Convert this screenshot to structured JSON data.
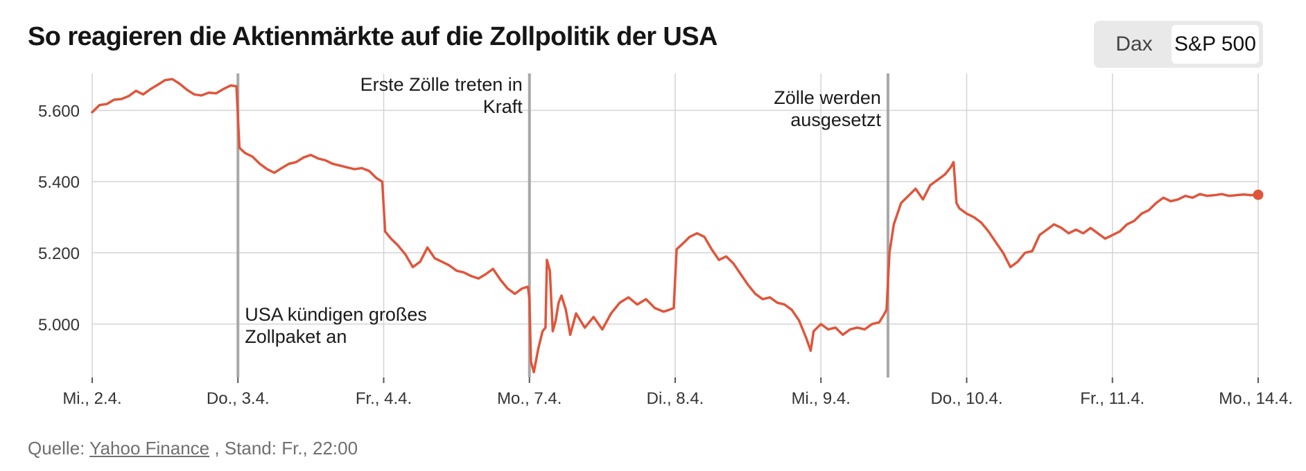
{
  "title": "So reagieren die Aktienmärkte auf die Zollpolitik der USA",
  "toggle": {
    "options": [
      "Dax",
      "S&P 500"
    ],
    "selected": "S&P 500"
  },
  "source": {
    "prefix": "Quelle:",
    "link_text": "Yahoo Finance",
    "suffix": ", Stand: Fr., 22:00"
  },
  "colors": {
    "line": "#e0553a",
    "grid": "#d4d4d4",
    "event_line": "#a8a8a8",
    "text": "#333333"
  },
  "chart_data": {
    "type": "line",
    "title": "So reagieren die Aktienmärkte auf die Zollpolitik der USA",
    "xlabel": "",
    "ylabel": "",
    "x_ticks": [
      "Mi., 2.4.",
      "Do., 3.4.",
      "Fr., 4.4.",
      "Mo., 7.4.",
      "Di., 8.4.",
      "Mi., 9.4.",
      "Do., 10.4.",
      "Fr., 11.4.",
      "Mo., 14.4."
    ],
    "x_range": [
      0,
      8
    ],
    "y_ticks": [
      5000,
      5200,
      5400,
      5600
    ],
    "y_tick_labels": [
      "5.000",
      "5.200",
      "5.400",
      "5.600"
    ],
    "ylim": [
      4850,
      5700
    ],
    "grid": true,
    "series": [
      {
        "name": "S&P 500",
        "points": [
          [
            0.0,
            5595
          ],
          [
            0.05,
            5615
          ],
          [
            0.1,
            5618
          ],
          [
            0.15,
            5630
          ],
          [
            0.2,
            5632
          ],
          [
            0.25,
            5640
          ],
          [
            0.3,
            5655
          ],
          [
            0.35,
            5645
          ],
          [
            0.4,
            5660
          ],
          [
            0.45,
            5672
          ],
          [
            0.5,
            5685
          ],
          [
            0.55,
            5688
          ],
          [
            0.6,
            5675
          ],
          [
            0.65,
            5658
          ],
          [
            0.7,
            5645
          ],
          [
            0.75,
            5642
          ],
          [
            0.8,
            5650
          ],
          [
            0.85,
            5648
          ],
          [
            0.9,
            5660
          ],
          [
            0.95,
            5670
          ],
          [
            0.99,
            5668
          ],
          [
            1.01,
            5495
          ],
          [
            1.05,
            5480
          ],
          [
            1.1,
            5470
          ],
          [
            1.15,
            5450
          ],
          [
            1.2,
            5435
          ],
          [
            1.25,
            5425
          ],
          [
            1.3,
            5438
          ],
          [
            1.35,
            5450
          ],
          [
            1.4,
            5455
          ],
          [
            1.45,
            5468
          ],
          [
            1.5,
            5475
          ],
          [
            1.55,
            5465
          ],
          [
            1.6,
            5460
          ],
          [
            1.65,
            5450
          ],
          [
            1.7,
            5445
          ],
          [
            1.75,
            5440
          ],
          [
            1.8,
            5435
          ],
          [
            1.85,
            5438
          ],
          [
            1.9,
            5430
          ],
          [
            1.95,
            5410
          ],
          [
            1.99,
            5400
          ],
          [
            2.01,
            5260
          ],
          [
            2.05,
            5240
          ],
          [
            2.1,
            5220
          ],
          [
            2.15,
            5195
          ],
          [
            2.2,
            5160
          ],
          [
            2.25,
            5175
          ],
          [
            2.3,
            5215
          ],
          [
            2.35,
            5185
          ],
          [
            2.4,
            5175
          ],
          [
            2.45,
            5165
          ],
          [
            2.5,
            5150
          ],
          [
            2.55,
            5145
          ],
          [
            2.6,
            5135
          ],
          [
            2.65,
            5128
          ],
          [
            2.7,
            5140
          ],
          [
            2.75,
            5155
          ],
          [
            2.8,
            5125
          ],
          [
            2.85,
            5100
          ],
          [
            2.9,
            5085
          ],
          [
            2.95,
            5100
          ],
          [
            2.99,
            5105
          ],
          [
            3.0,
            5070
          ],
          [
            3.01,
            4895
          ],
          [
            3.03,
            4865
          ],
          [
            3.06,
            4930
          ],
          [
            3.09,
            4980
          ],
          [
            3.11,
            4990
          ],
          [
            3.12,
            5180
          ],
          [
            3.14,
            5150
          ],
          [
            3.16,
            4980
          ],
          [
            3.18,
            5010
          ],
          [
            3.2,
            5060
          ],
          [
            3.22,
            5080
          ],
          [
            3.25,
            5040
          ],
          [
            3.28,
            4970
          ],
          [
            3.32,
            5030
          ],
          [
            3.38,
            4990
          ],
          [
            3.44,
            5020
          ],
          [
            3.5,
            4985
          ],
          [
            3.56,
            5030
          ],
          [
            3.62,
            5060
          ],
          [
            3.68,
            5075
          ],
          [
            3.74,
            5055
          ],
          [
            3.8,
            5070
          ],
          [
            3.86,
            5045
          ],
          [
            3.92,
            5035
          ],
          [
            3.96,
            5040
          ],
          [
            3.99,
            5045
          ],
          [
            4.01,
            5210
          ],
          [
            4.05,
            5225
          ],
          [
            4.1,
            5245
          ],
          [
            4.15,
            5255
          ],
          [
            4.2,
            5245
          ],
          [
            4.25,
            5210
          ],
          [
            4.3,
            5180
          ],
          [
            4.35,
            5190
          ],
          [
            4.4,
            5170
          ],
          [
            4.45,
            5140
          ],
          [
            4.5,
            5110
          ],
          [
            4.55,
            5085
          ],
          [
            4.6,
            5070
          ],
          [
            4.65,
            5075
          ],
          [
            4.7,
            5060
          ],
          [
            4.75,
            5055
          ],
          [
            4.8,
            5040
          ],
          [
            4.85,
            5010
          ],
          [
            4.9,
            4960
          ],
          [
            4.93,
            4925
          ],
          [
            4.95,
            4980
          ],
          [
            5.0,
            5000
          ],
          [
            5.05,
            4985
          ],
          [
            5.1,
            4990
          ],
          [
            5.15,
            4970
          ],
          [
            5.2,
            4985
          ],
          [
            5.25,
            4990
          ],
          [
            5.3,
            4985
          ],
          [
            5.35,
            5000
          ],
          [
            5.4,
            5005
          ],
          [
            5.43,
            5025
          ],
          [
            5.45,
            5040
          ],
          [
            5.47,
            5200
          ],
          [
            5.5,
            5280
          ],
          [
            5.55,
            5340
          ],
          [
            5.6,
            5360
          ],
          [
            5.65,
            5380
          ],
          [
            5.7,
            5350
          ],
          [
            5.75,
            5390
          ],
          [
            5.8,
            5405
          ],
          [
            5.85,
            5420
          ],
          [
            5.89,
            5440
          ],
          [
            5.91,
            5455
          ],
          [
            5.93,
            5340
          ],
          [
            5.95,
            5325
          ],
          [
            6.0,
            5310
          ],
          [
            6.05,
            5300
          ],
          [
            6.1,
            5285
          ],
          [
            6.15,
            5260
          ],
          [
            6.2,
            5230
          ],
          [
            6.25,
            5200
          ],
          [
            6.3,
            5160
          ],
          [
            6.35,
            5175
          ],
          [
            6.4,
            5200
          ],
          [
            6.45,
            5205
          ],
          [
            6.5,
            5250
          ],
          [
            6.55,
            5265
          ],
          [
            6.6,
            5280
          ],
          [
            6.65,
            5270
          ],
          [
            6.7,
            5255
          ],
          [
            6.75,
            5265
          ],
          [
            6.8,
            5255
          ],
          [
            6.85,
            5270
          ],
          [
            6.9,
            5255
          ],
          [
            6.95,
            5240
          ],
          [
            7.0,
            5250
          ],
          [
            7.05,
            5260
          ],
          [
            7.1,
            5280
          ],
          [
            7.15,
            5290
          ],
          [
            7.2,
            5310
          ],
          [
            7.25,
            5320
          ],
          [
            7.3,
            5340
          ],
          [
            7.35,
            5355
          ],
          [
            7.4,
            5345
          ],
          [
            7.45,
            5350
          ],
          [
            7.5,
            5360
          ],
          [
            7.55,
            5355
          ],
          [
            7.6,
            5365
          ],
          [
            7.65,
            5360
          ],
          [
            7.7,
            5362
          ],
          [
            7.75,
            5365
          ],
          [
            7.8,
            5360
          ],
          [
            7.85,
            5362
          ],
          [
            7.9,
            5364
          ],
          [
            7.95,
            5362
          ],
          [
            8.0,
            5363
          ]
        ]
      }
    ],
    "annotations": [
      {
        "x": 1.0,
        "label": "USA kündigen großes Zollpaket an",
        "lines": [
          "USA kündigen großes",
          "Zollpaket an"
        ]
      },
      {
        "x": 3.0,
        "label": "Erste Zölle treten in Kraft",
        "lines": [
          "Erste Zölle treten in",
          "Kraft"
        ]
      },
      {
        "x": 5.46,
        "label": "Zölle werden ausgesetzt",
        "lines": [
          "Zölle werden",
          "ausgesetzt"
        ]
      }
    ],
    "legend": "none"
  }
}
